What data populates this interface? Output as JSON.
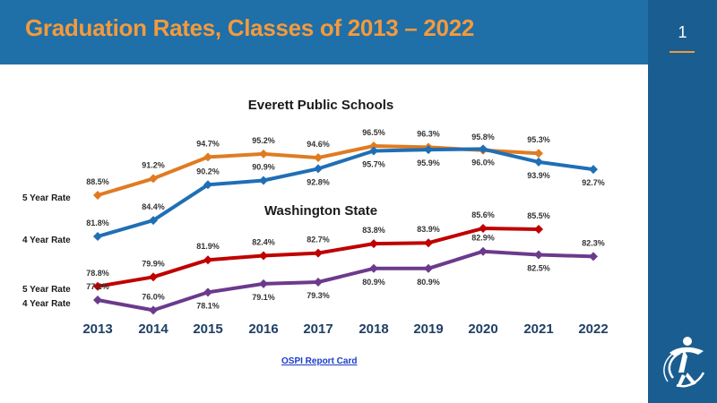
{
  "slide": {
    "title": "Graduation Rates, Classes of 2013 – 2022",
    "page_number": "1",
    "link_label": "OSPI Report Card"
  },
  "chart_data": {
    "type": "line",
    "x": [
      "2013",
      "2014",
      "2015",
      "2016",
      "2017",
      "2018",
      "2019",
      "2020",
      "2021",
      "2022"
    ],
    "groups": [
      {
        "title": "Everett Public Schools",
        "series": [
          {
            "name": "5 Year Rate",
            "color": "#e07b22",
            "values": [
              88.5,
              91.2,
              94.7,
              95.2,
              94.6,
              96.5,
              96.3,
              95.8,
              95.3,
              null
            ]
          },
          {
            "name": "4 Year Rate",
            "color": "#1f6fb5",
            "values": [
              81.8,
              84.4,
              90.2,
              90.9,
              92.8,
              95.7,
              95.9,
              96.0,
              93.9,
              92.7
            ]
          }
        ]
      },
      {
        "title": "Washington State",
        "series": [
          {
            "name": "5 Year Rate",
            "color": "#c00000",
            "values": [
              78.8,
              79.9,
              81.9,
              82.4,
              82.7,
              83.8,
              83.9,
              85.6,
              85.5,
              null
            ]
          },
          {
            "name": "4 Year Rate",
            "color": "#6b3a8c",
            "values": [
              77.2,
              76.0,
              78.1,
              79.1,
              79.3,
              80.9,
              80.9,
              82.9,
              82.5,
              82.3
            ]
          }
        ]
      }
    ],
    "label_format": "%"
  }
}
